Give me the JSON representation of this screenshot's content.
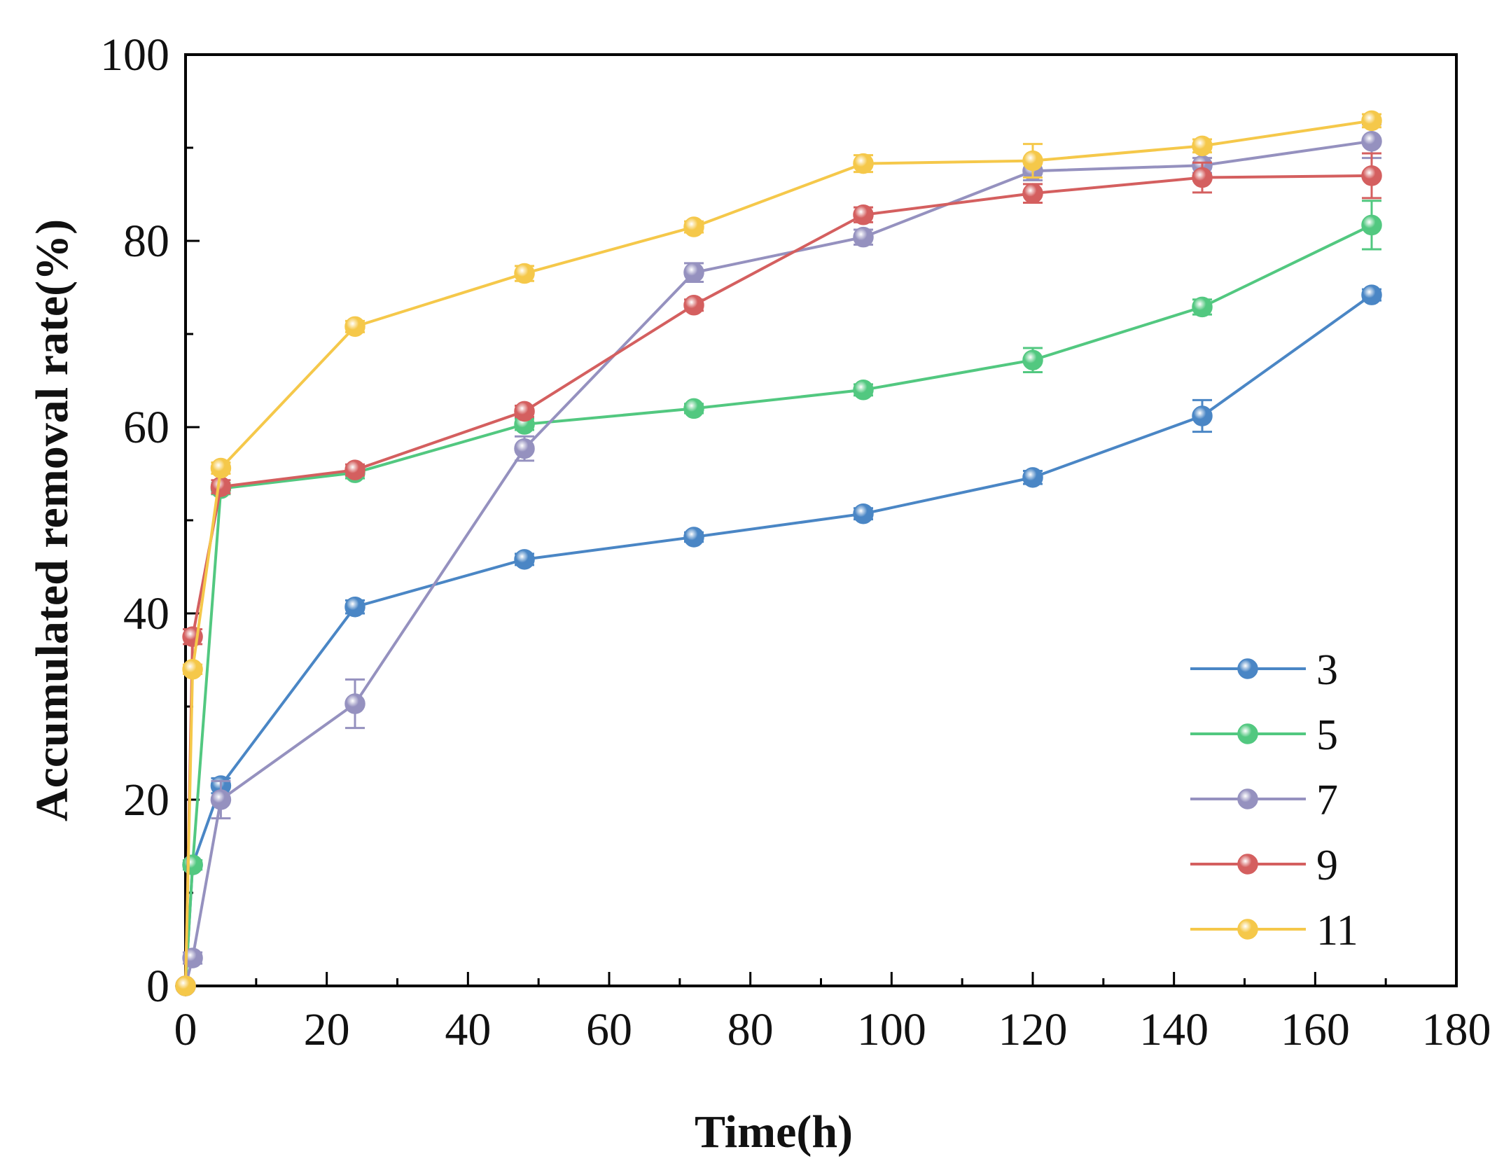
{
  "chart_data": {
    "type": "line",
    "title": "",
    "xlabel": "Time(h)",
    "ylabel": "Accumulated removal rate(%)",
    "xlim": [
      0,
      180
    ],
    "ylim": [
      0,
      100
    ],
    "xticks": [
      0,
      20,
      40,
      60,
      80,
      100,
      120,
      140,
      160,
      180
    ],
    "yticks": [
      0,
      20,
      40,
      60,
      80,
      100
    ],
    "grid": false,
    "legend_position": "bottom-right",
    "x": [
      0,
      1,
      5,
      24,
      48,
      72,
      96,
      120,
      144,
      168
    ],
    "series": [
      {
        "name": "3",
        "color": "#4a86c5",
        "values": [
          0,
          13,
          21.5,
          40.7,
          45.8,
          48.2,
          50.7,
          54.6,
          61.2,
          74.2
        ],
        "errors": [
          0,
          0.5,
          0.8,
          0.7,
          0.6,
          0.5,
          0.6,
          0.7,
          1.7,
          0.6
        ]
      },
      {
        "name": "5",
        "color": "#52c880",
        "values": [
          0,
          13,
          53.4,
          55.1,
          60.3,
          62.0,
          64.0,
          67.2,
          72.9,
          81.7
        ],
        "errors": [
          0,
          0.5,
          0.6,
          0.6,
          0.6,
          0.5,
          0.6,
          1.3,
          0.8,
          2.6
        ]
      },
      {
        "name": "7",
        "color": "#9591bf",
        "values": [
          0,
          3,
          20.0,
          30.3,
          57.7,
          76.6,
          80.4,
          87.5,
          88.1,
          90.7
        ],
        "errors": [
          0,
          0.6,
          2.0,
          2.6,
          1.3,
          1.0,
          0.8,
          1.0,
          0.8,
          1.8
        ]
      },
      {
        "name": "9",
        "color": "#d45f5f",
        "values": [
          0,
          37.5,
          53.6,
          55.4,
          61.7,
          73.1,
          82.8,
          85.1,
          86.8,
          87.0
        ],
        "errors": [
          0,
          0.8,
          0.7,
          0.6,
          0.6,
          0.6,
          0.8,
          1.0,
          1.6,
          2.4
        ]
      },
      {
        "name": "11",
        "color": "#f5c84a",
        "values": [
          0,
          34.0,
          55.6,
          70.8,
          76.5,
          81.5,
          88.3,
          88.6,
          90.2,
          92.9
        ],
        "errors": [
          0,
          0.5,
          0.6,
          0.6,
          0.8,
          0.6,
          0.9,
          1.8,
          0.7,
          0.7
        ]
      }
    ]
  }
}
